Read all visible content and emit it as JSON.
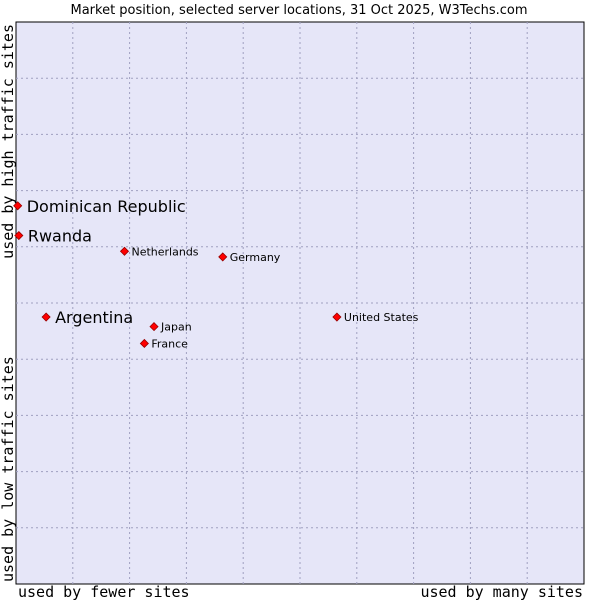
{
  "chart_data": {
    "type": "scatter",
    "title": "Market position, selected server locations, 31 Oct 2025, W3Techs.com",
    "xlabel_left": "used by fewer sites",
    "xlabel_right": "used by many sites",
    "ylabel_bottom": "used by low traffic sites",
    "ylabel_top": "used by high traffic sites",
    "xlim": [
      0,
      100
    ],
    "ylim": [
      0,
      100
    ],
    "grid": true,
    "colors": {
      "plot_bg": "#e6e6f8",
      "grid": "#a0a0c0",
      "point": "#ff0000",
      "point_stroke": "#990000"
    },
    "points": [
      {
        "label": "Dominican Republic",
        "x": 0.3,
        "y": 67.3,
        "emphasis": true
      },
      {
        "label": "Rwanda",
        "x": 0.5,
        "y": 62.0,
        "emphasis": true
      },
      {
        "label": "Netherlands",
        "x": 19.1,
        "y": 59.2,
        "emphasis": false
      },
      {
        "label": "Germany",
        "x": 36.4,
        "y": 58.2,
        "emphasis": false
      },
      {
        "label": "Argentina",
        "x": 5.3,
        "y": 47.5,
        "emphasis": true
      },
      {
        "label": "United States",
        "x": 56.5,
        "y": 47.5,
        "emphasis": false
      },
      {
        "label": "Japan",
        "x": 24.3,
        "y": 45.8,
        "emphasis": false
      },
      {
        "label": "France",
        "x": 22.6,
        "y": 42.8,
        "emphasis": false
      }
    ]
  }
}
